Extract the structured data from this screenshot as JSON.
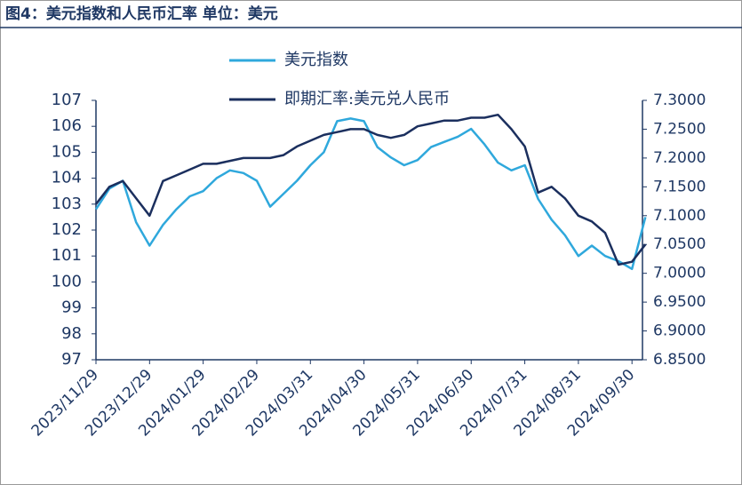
{
  "chart_data": {
    "type": "line",
    "title": "图4：美元指数和人民币汇率 单位：美元",
    "categories": [
      "2023/11/29",
      null,
      null,
      null,
      "2023/12/29",
      null,
      null,
      null,
      "2024/01/29",
      null,
      null,
      null,
      "2024/02/29",
      null,
      null,
      null,
      "2024/03/31",
      null,
      null,
      null,
      "2024/04/30",
      null,
      null,
      null,
      "2024/05/31",
      null,
      null,
      null,
      "2024/06/30",
      null,
      null,
      null,
      "2024/07/31",
      null,
      null,
      null,
      "2024/08/31",
      null,
      null,
      null,
      "2024/09/30",
      null
    ],
    "series": [
      {
        "name": "美元指数",
        "color": "#2fa8dc",
        "values": [
          102.8,
          103.6,
          103.9,
          102.3,
          101.4,
          102.2,
          102.8,
          103.3,
          103.5,
          104.0,
          104.3,
          104.2,
          103.9,
          102.9,
          103.4,
          103.9,
          104.5,
          105.0,
          106.2,
          106.3,
          106.2,
          105.2,
          104.8,
          104.5,
          104.7,
          105.2,
          105.4,
          105.6,
          105.9,
          105.3,
          104.6,
          104.3,
          104.5,
          103.2,
          102.4,
          101.8,
          101.0,
          101.4,
          101.0,
          100.8,
          100.5,
          102.5
        ]
      },
      {
        "name": "即期汇率:美元兑人民币",
        "color": "#1b2f5e",
        "axis": "y2",
        "values": [
          7.12,
          7.15,
          7.16,
          7.13,
          7.1,
          7.16,
          7.17,
          7.18,
          7.19,
          7.19,
          7.195,
          7.2,
          7.2,
          7.2,
          7.205,
          7.22,
          7.23,
          7.24,
          7.245,
          7.25,
          7.25,
          7.24,
          7.235,
          7.24,
          7.255,
          7.26,
          7.265,
          7.265,
          7.27,
          7.27,
          7.275,
          7.25,
          7.22,
          7.14,
          7.15,
          7.13,
          7.1,
          7.09,
          7.07,
          7.015,
          7.02,
          7.05
        ]
      }
    ],
    "ylim": [
      97,
      107
    ],
    "yticks": [
      97,
      98,
      99,
      100,
      101,
      102,
      103,
      104,
      105,
      106,
      107
    ],
    "y2lim": [
      6.85,
      7.3
    ],
    "y2ticks": [
      {
        "value": 6.85,
        "label": "6.8500"
      },
      {
        "value": 6.9,
        "label": "6.9000"
      },
      {
        "value": 6.95,
        "label": "6.9500"
      },
      {
        "value": 7.0,
        "label": "7.0000"
      },
      {
        "value": 7.05,
        "label": "7.0500"
      },
      {
        "value": 7.1,
        "label": "7.1000"
      },
      {
        "value": 7.15,
        "label": "7.1500"
      },
      {
        "value": 7.2,
        "label": "7.2000"
      },
      {
        "value": 7.25,
        "label": "7.2500"
      },
      {
        "value": 7.3,
        "label": "7.3000"
      }
    ]
  }
}
